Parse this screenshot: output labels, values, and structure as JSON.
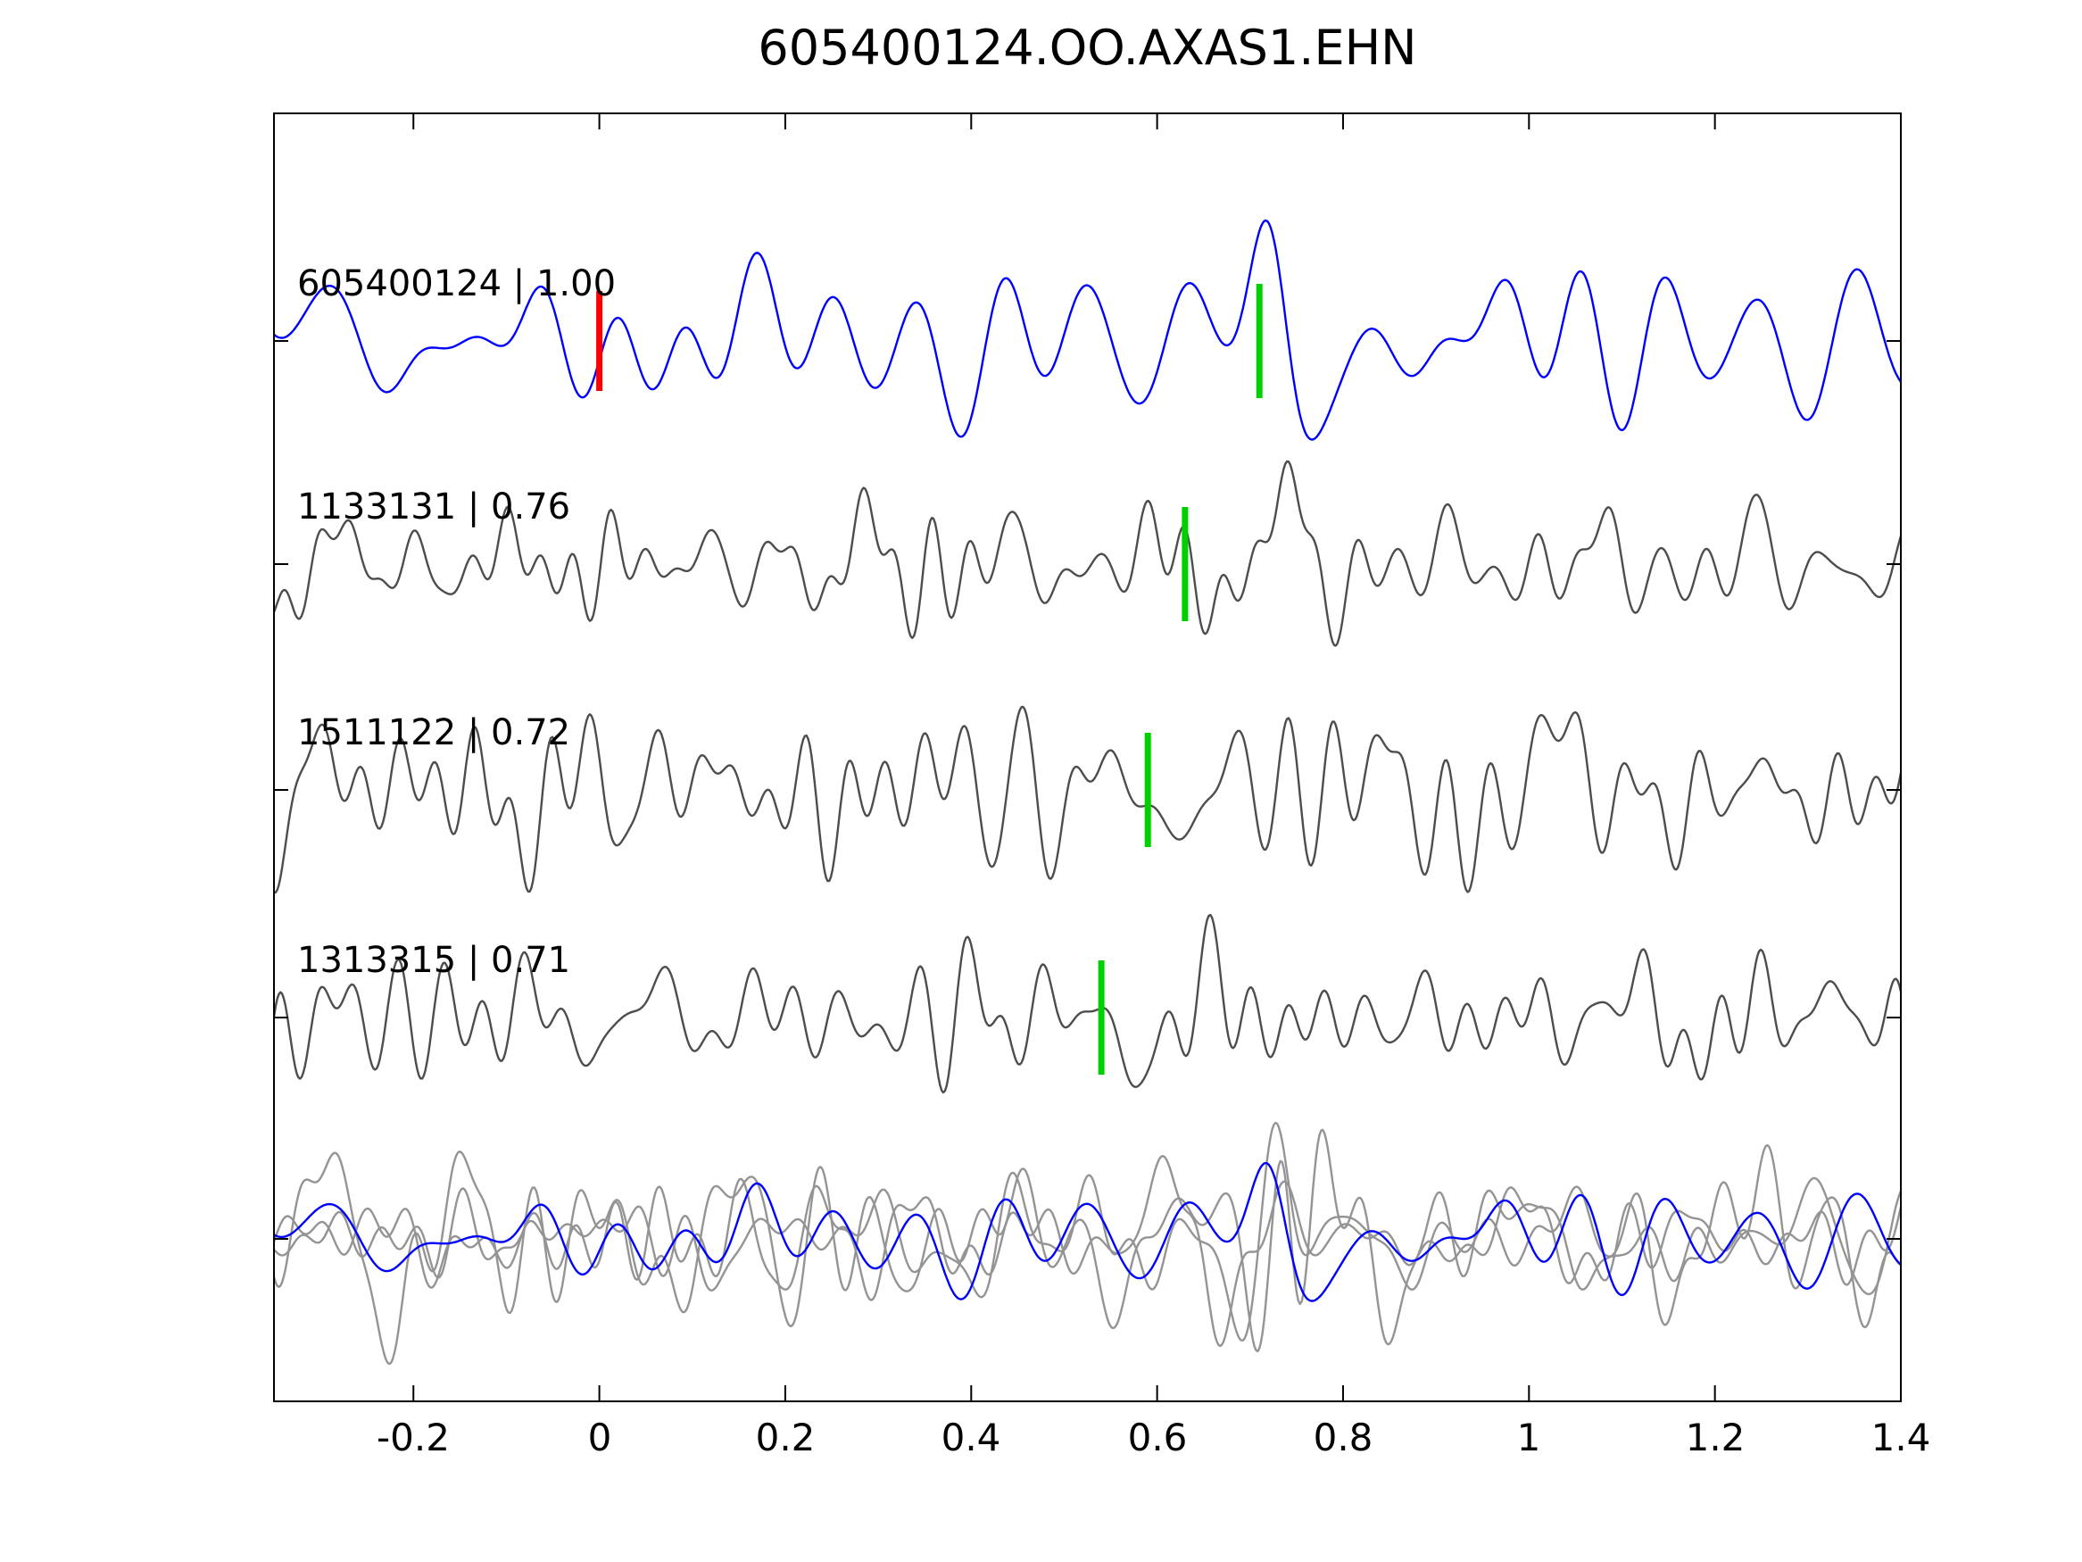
{
  "title": "605400124.OO.AXAS1.EHN",
  "chart_data": {
    "type": "line",
    "title": "605400124.OO.AXAS1.EHN",
    "xlabel": "",
    "ylabel": "",
    "xlim": [
      -0.35,
      1.4
    ],
    "x_ticks": [
      "-0.2",
      "0",
      "0.2",
      "0.4",
      "0.6",
      "0.8",
      "1",
      "1.2",
      "1.4"
    ],
    "x_tick_values": [
      -0.2,
      0,
      0.2,
      0.4,
      0.6,
      0.8,
      1.0,
      1.2,
      1.4
    ],
    "grid": false,
    "legend": "none",
    "waveform_note": "Seismic waveform correlation panel; trace sample values are not legible at source resolution, so each trace is reconstructed stochastically from the synth parameters below. Picks (vertical bars) and labels are exact.",
    "traces": [
      {
        "label": "605400124 | 1.00",
        "event_id": "605400124",
        "correlation": "1.00",
        "color": "#0000ff",
        "picks": [
          {
            "x": 0.0,
            "color": "#ff0000",
            "name": "origin-pick"
          },
          {
            "x": 0.71,
            "color": "#00d000",
            "name": "detection-pick"
          }
        ],
        "synth": {
          "seed": 7,
          "f0": 2,
          "f1": 13,
          "amp": 135,
          "burst_x": 0.73,
          "burst_amp": 1.3,
          "burst_w": 0.03
        }
      },
      {
        "label": "1133131 | 0.76",
        "event_id": "1133131",
        "correlation": "0.76",
        "color": "#4d4d4d",
        "picks": [
          {
            "x": 0.63,
            "color": "#00d000",
            "name": "detection-pick"
          }
        ],
        "synth": {
          "seed": 13,
          "f0": 3,
          "f1": 26,
          "amp": 115,
          "burst_x": 0.745,
          "burst_amp": 0.9,
          "burst_w": 0.03
        }
      },
      {
        "label": "1511122 | 0.72",
        "event_id": "1511122",
        "correlation": "0.72",
        "color": "#4d4d4d",
        "picks": [
          {
            "x": 0.59,
            "color": "#00d000",
            "name": "detection-pick"
          }
        ],
        "synth": {
          "seed": 21,
          "f0": 3,
          "f1": 24,
          "amp": 115,
          "burst_x": 0.64,
          "burst_amp": 0.9,
          "burst_w": 0.03
        }
      },
      {
        "label": "1313315 | 0.71",
        "event_id": "1313315",
        "correlation": "0.71",
        "color": "#4d4d4d",
        "picks": [
          {
            "x": 0.54,
            "color": "#00d000",
            "name": "detection-pick"
          }
        ],
        "synth": {
          "seed": 33,
          "f0": 3,
          "f1": 24,
          "amp": 115,
          "burst_x": 0.6,
          "burst_amp": 0.9,
          "burst_w": 0.03
        }
      },
      {
        "label": "",
        "event_id": "stack",
        "correlation": "",
        "color": "#0000ff",
        "picks": [],
        "overlays": [
          {
            "color": "#949494",
            "synth": {
              "seed": 41,
              "f0": 3,
              "f1": 22,
              "amp": 130,
              "burst_x": 0.7,
              "burst_amp": 1.2,
              "burst_w": 0.03
            }
          },
          {
            "color": "#949494",
            "synth": {
              "seed": 47,
              "f0": 3,
              "f1": 22,
              "amp": 140,
              "burst_x": 0.745,
              "burst_amp": 1.5,
              "burst_w": 0.028
            }
          },
          {
            "color": "#949494",
            "synth": {
              "seed": 53,
              "f0": 3,
              "f1": 22,
              "amp": 120,
              "burst_x": 0.63,
              "burst_amp": 1.0,
              "burst_w": 0.035
            }
          },
          {
            "color": "#0000ff",
            "synth": {
              "seed": 7,
              "f0": 2,
              "f1": 13,
              "amp": 85,
              "burst_x": 0.73,
              "burst_amp": 1.3,
              "burst_w": 0.03
            }
          }
        ]
      }
    ],
    "colors": {
      "axis": "#000000",
      "template_trace": "#0000ff",
      "matched_trace": "#4d4d4d",
      "overlay_trace": "#949494",
      "origin_pick": "#ff0000",
      "detection_pick": "#00d000",
      "background": "#ffffff"
    }
  }
}
